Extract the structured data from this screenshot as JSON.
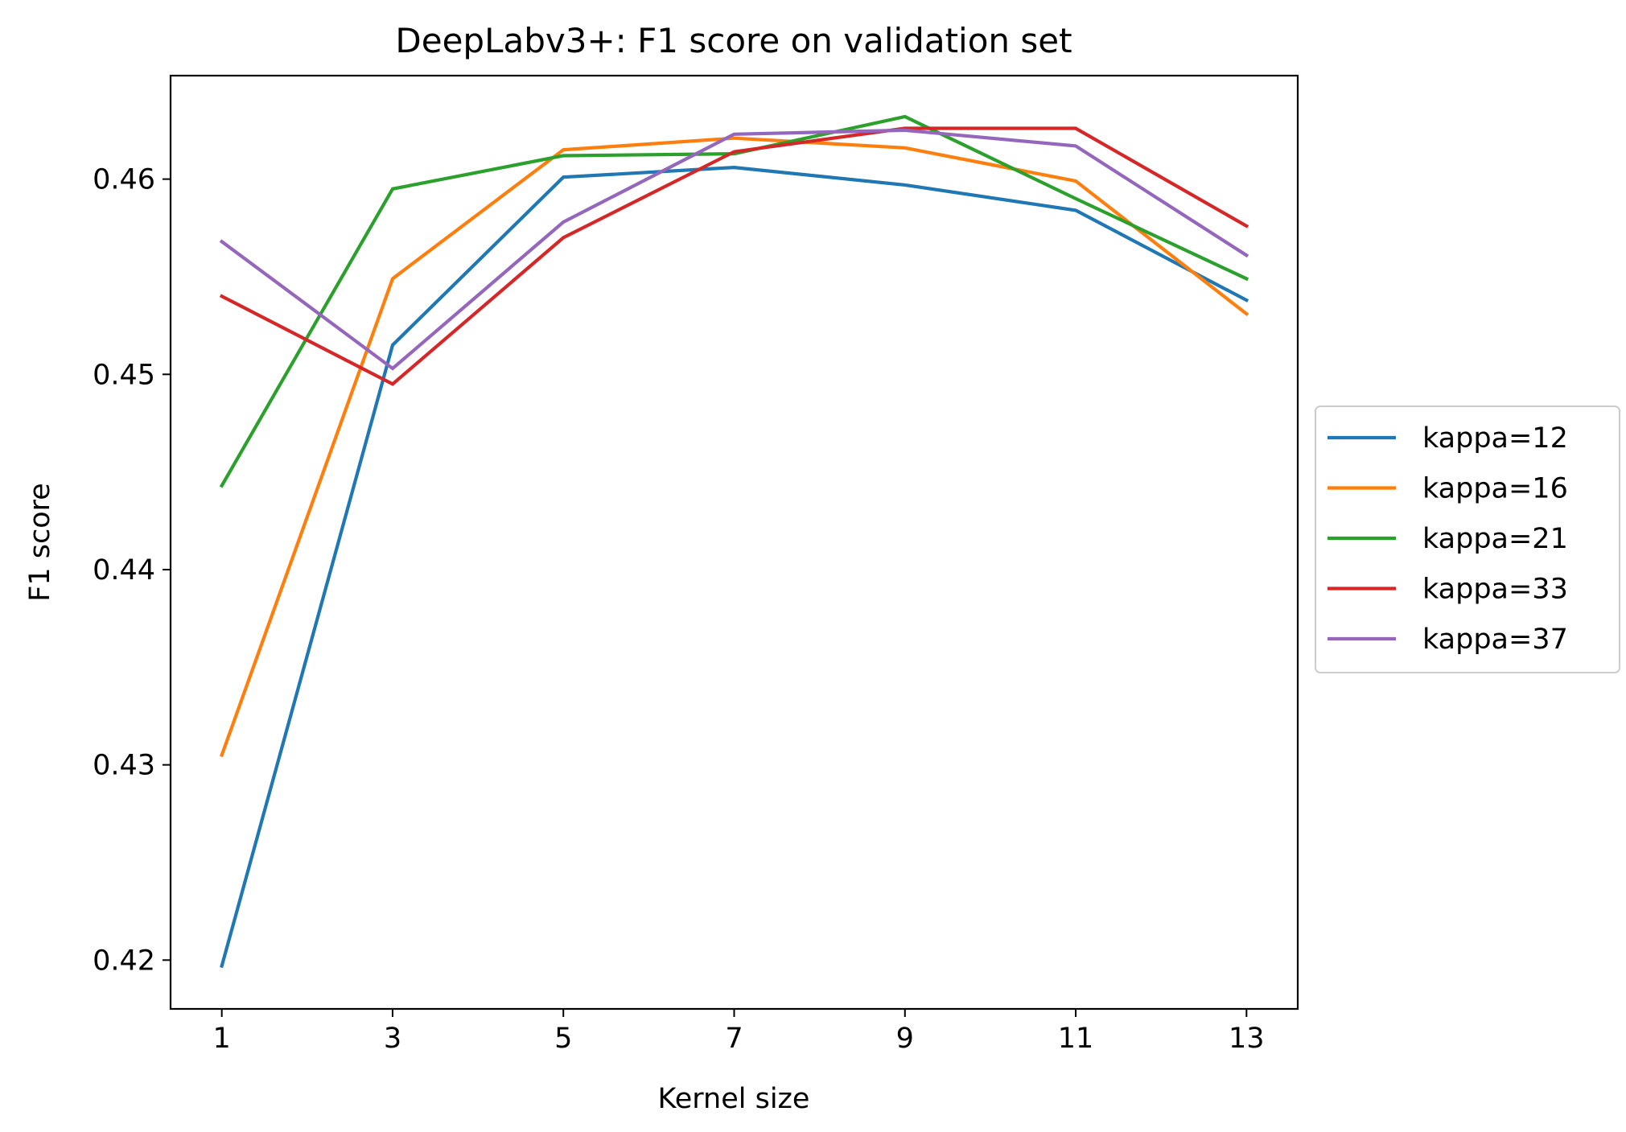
{
  "chart_data": {
    "type": "line",
    "title": "DeepLabv3+: F1 score on validation set",
    "xlabel": "Kernel size",
    "ylabel": "F1 score",
    "x": [
      1,
      3,
      5,
      7,
      9,
      11,
      13
    ],
    "xticks": [
      1,
      3,
      5,
      7,
      9,
      11,
      13
    ],
    "xtick_labels": [
      "1",
      "3",
      "5",
      "7",
      "9",
      "11",
      "13"
    ],
    "yticks": [
      0.42,
      0.43,
      0.44,
      0.45,
      0.46
    ],
    "ytick_labels": [
      "0.42",
      "0.43",
      "0.44",
      "0.45",
      "0.46"
    ],
    "xlim": [
      0.4,
      13.6
    ],
    "ylim": [
      0.4175,
      0.4653
    ],
    "grid": false,
    "legend_position": "center-right-outside",
    "series": [
      {
        "name": "kappa=12",
        "color": "#1f77b4",
        "values": [
          0.4197,
          0.4515,
          0.4601,
          0.4606,
          0.4597,
          0.4584,
          0.4538
        ]
      },
      {
        "name": "kappa=16",
        "color": "#ff7f0e",
        "values": [
          0.4305,
          0.4549,
          0.4615,
          0.4621,
          0.4616,
          0.4599,
          0.4531
        ]
      },
      {
        "name": "kappa=21",
        "color": "#2ca02c",
        "values": [
          0.4443,
          0.4595,
          0.4612,
          0.4613,
          0.4632,
          0.459,
          0.4549
        ]
      },
      {
        "name": "kappa=33",
        "color": "#d62728",
        "values": [
          0.454,
          0.4495,
          0.457,
          0.4614,
          0.4626,
          0.4626,
          0.4576
        ]
      },
      {
        "name": "kappa=37",
        "color": "#9467bd",
        "values": [
          0.4568,
          0.4503,
          0.4578,
          0.4623,
          0.4625,
          0.4617,
          0.4561
        ]
      }
    ]
  }
}
